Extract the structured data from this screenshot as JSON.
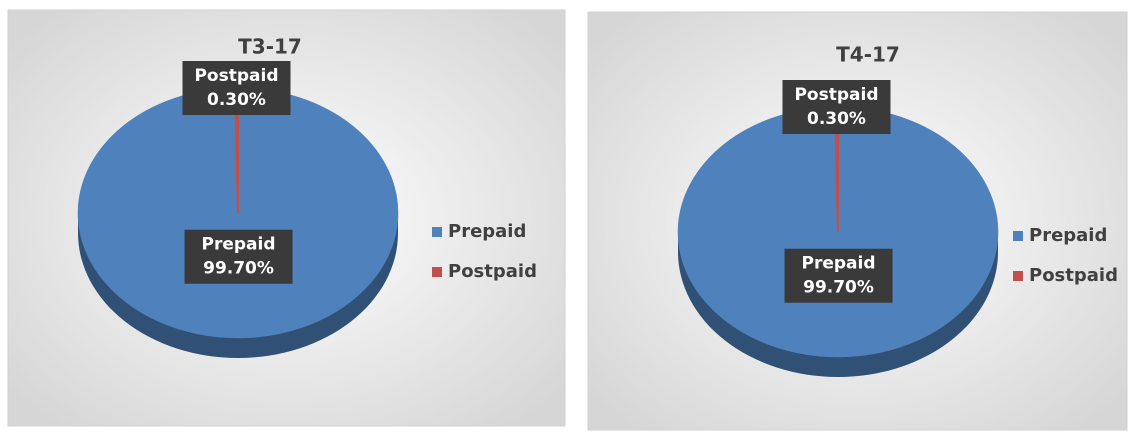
{
  "chart_data": [
    {
      "type": "pie",
      "title": "T3-17",
      "categories": [
        "Prepaid",
        "Postpaid"
      ],
      "values": [
        99.7,
        0.3
      ],
      "value_labels": [
        "99.70%",
        "0.30%"
      ],
      "colors": [
        "#4f81bd",
        "#c0504d"
      ],
      "legend": "right"
    },
    {
      "type": "pie",
      "title": "T4-17",
      "categories": [
        "Prepaid",
        "Postpaid"
      ],
      "values": [
        99.7,
        0.3
      ],
      "value_labels": [
        "99.70%",
        "0.30%"
      ],
      "colors": [
        "#4f81bd",
        "#c0504d"
      ],
      "legend": "right"
    }
  ]
}
